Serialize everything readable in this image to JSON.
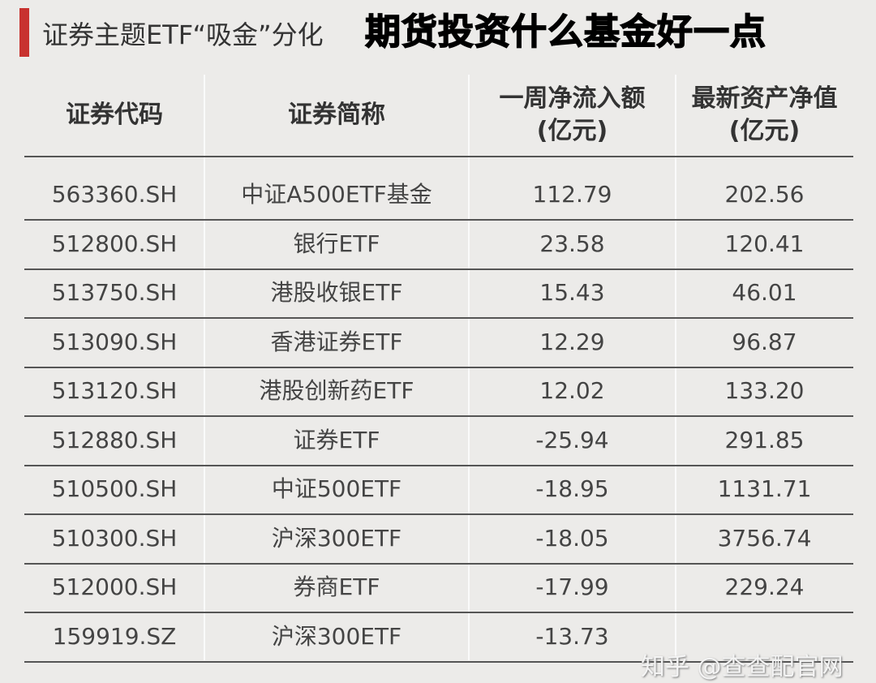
{
  "title": "证券主题ETF“吸金”分化",
  "headers": [
    "证券代码",
    "证券简称",
    "一周净流入额\n(亿元)",
    "最新资产净值\n(亿元)"
  ],
  "rows": [
    [
      "563360.SH",
      "中证A500ETF基金",
      "112.79",
      "202.56"
    ],
    [
      "512800.SH",
      "银行ETF",
      "23.58",
      "120.41"
    ],
    [
      "513750.SH",
      "港股收银ETF",
      "15.43",
      "46.01"
    ],
    [
      "513090.SH",
      "香港证券ETF",
      "12.29",
      "96.87"
    ],
    [
      "513120.SH",
      "港股创新药ETF",
      "12.02",
      "133.20"
    ],
    [
      "512880.SH",
      "证券ETF",
      "-25.94",
      "291.85"
    ],
    [
      "510500.SH",
      "中证500ETF",
      "-18.95",
      "1131.71"
    ],
    [
      "510300.SH",
      "沪深300ETF",
      "-18.05",
      "3756.74"
    ],
    [
      "512000.SH",
      "券商ETF",
      "-17.99",
      "229.24"
    ],
    [
      "159919.SZ",
      "沪深300ETF",
      "-13.73",
      ""
    ]
  ],
  "overlay_title": "期货投资什么基金好一点",
  "watermark": "知乎 @查查配官网",
  "colors": {
    "accent_bar": "#c8322f",
    "background": "#ecebe9"
  }
}
